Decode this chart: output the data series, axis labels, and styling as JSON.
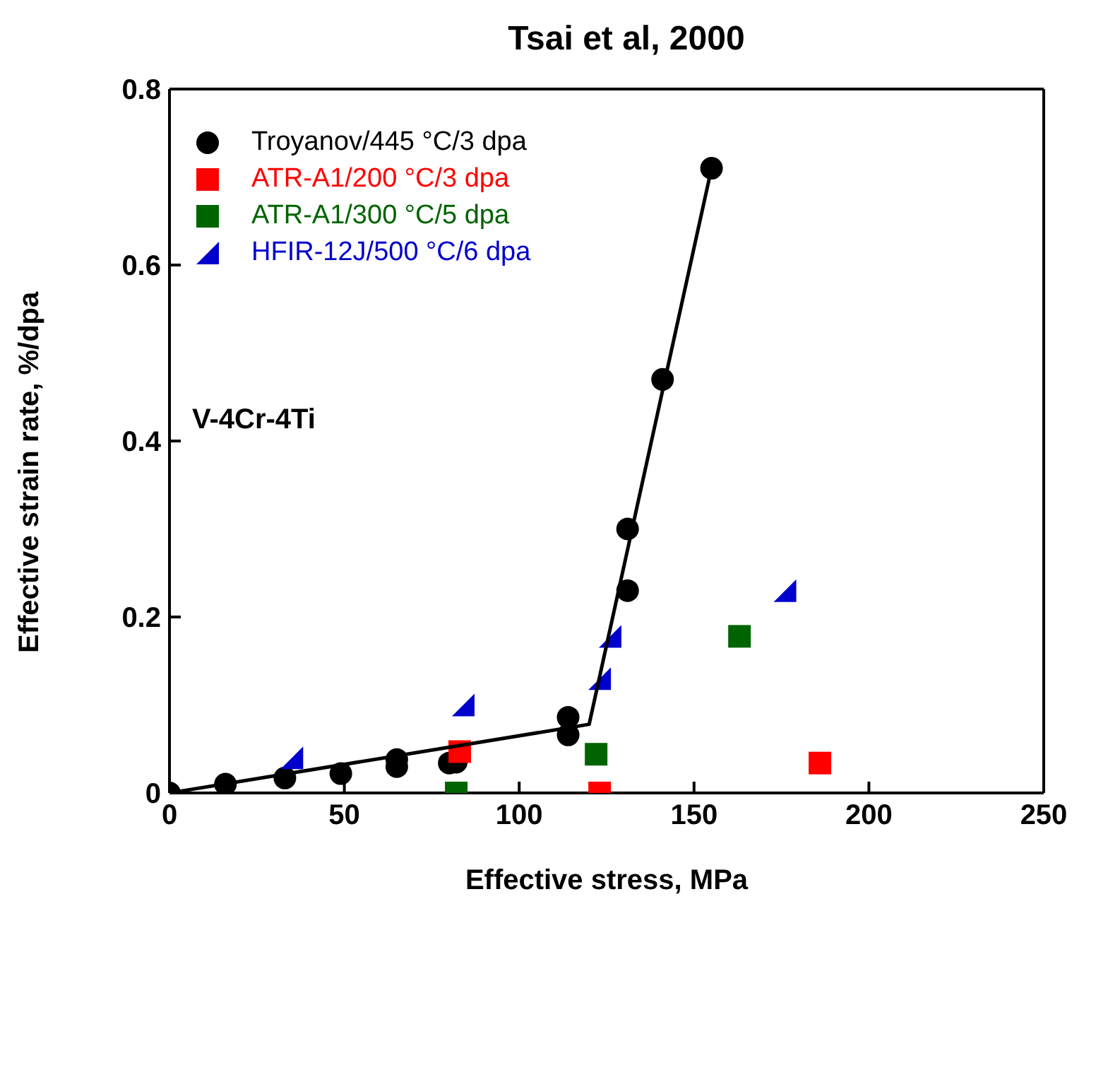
{
  "chart_data": {
    "type": "scatter",
    "title": "Tsai et al, 2000",
    "xlabel": "Effective  stress,  MPa",
    "ylabel": "Effective  strain  rate,  %/dpa",
    "annotations": [
      "V-4Cr-4Ti"
    ],
    "xlim": [
      0,
      250
    ],
    "xticks": [
      0,
      50,
      100,
      150,
      200,
      250
    ],
    "ylim": [
      0,
      0.8
    ],
    "yticks": [
      0,
      0.2,
      0.4,
      0.6,
      0.8
    ],
    "grid": false,
    "legend": "top left",
    "series": [
      {
        "name": "Troyanov/445  °C/3  dpa",
        "color": "#000000",
        "marker": "circle",
        "x": [
          0,
          16,
          33,
          49,
          65,
          65,
          80,
          82,
          114,
          114,
          131,
          131,
          141,
          155
        ],
        "values": [
          0,
          0.01,
          0.017,
          0.022,
          0.03,
          0.038,
          0.034,
          0.035,
          0.086,
          0.066,
          0.3,
          0.23,
          0.47,
          0.71
        ]
      },
      {
        "name": "ATR-A1/200  °C/3  dpa",
        "color": "#ff0000",
        "marker": "square",
        "x": [
          83,
          123,
          186
        ],
        "values": [
          0.047,
          0,
          0.034
        ]
      },
      {
        "name": "ATR-A1/300  °C/5  dpa",
        "color": "#006400",
        "marker": "square",
        "x": [
          82,
          122,
          163
        ],
        "values": [
          0,
          0.044,
          0.178
        ]
      },
      {
        "name": "HFIR-12J/500  °C/6  dpa",
        "color": "#0000cc",
        "marker": "triangle",
        "x": [
          35,
          84,
          123,
          126,
          176
        ],
        "values": [
          0.04,
          0.1,
          0.13,
          0.178,
          0.23
        ]
      },
      {
        "type": "line",
        "color": "#000000",
        "marker": "none",
        "x": [
          0,
          120,
          155
        ],
        "values": [
          0,
          0.078,
          0.71
        ]
      }
    ]
  }
}
